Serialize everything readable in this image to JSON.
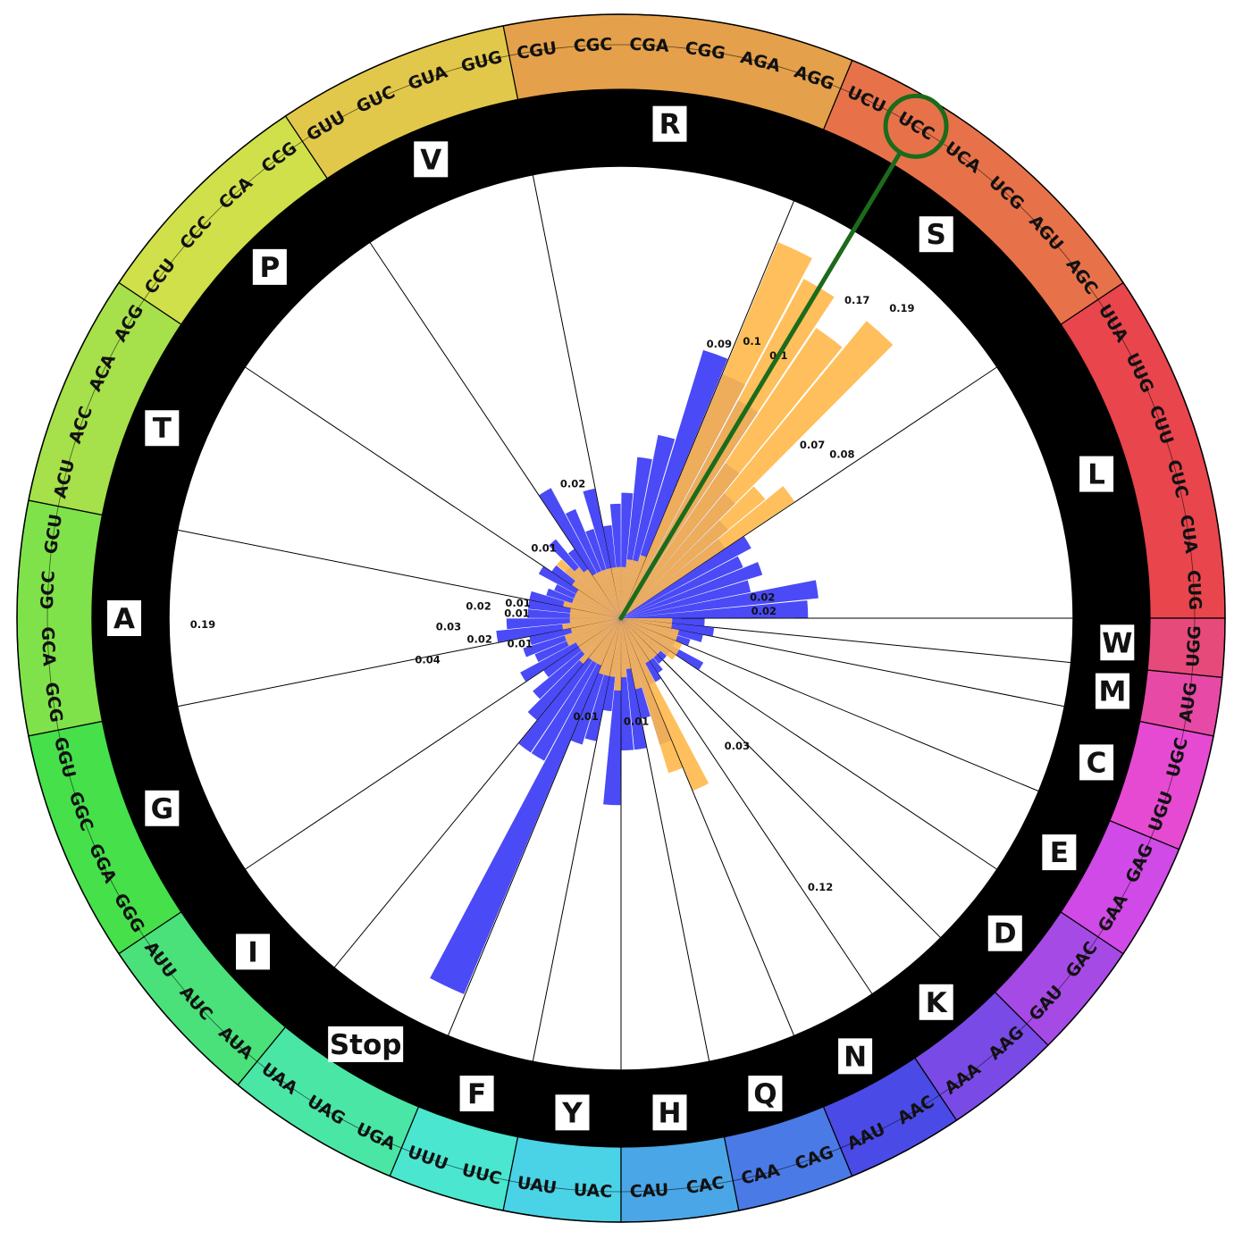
{
  "chart_data": {
    "type": "bar",
    "subtype": "polar",
    "colors": {
      "series_a": "#4a4af6",
      "series_b": "#ffb84a",
      "highlight": "#1b6b1b"
    },
    "amino_acids": [
      {
        "aa": "L",
        "codons": [
          "CUG",
          "CUA",
          "CUC",
          "CUU",
          "UUG",
          "UUA"
        ],
        "color": "#e8454d"
      },
      {
        "aa": "S",
        "codons": [
          "AGC",
          "AGU",
          "UCG",
          "UCA",
          "UCC",
          "UCU"
        ],
        "color": "#e7724a"
      },
      {
        "aa": "R",
        "codons": [
          "AGG",
          "AGA",
          "CGG",
          "CGA",
          "CGC",
          "CGU"
        ],
        "color": "#e4a04a"
      },
      {
        "aa": "V",
        "codons": [
          "GUG",
          "GUA",
          "GUC",
          "GUU"
        ],
        "color": "#e2c84a"
      },
      {
        "aa": "P",
        "codons": [
          "CCG",
          "CCA",
          "CCC",
          "CCU"
        ],
        "color": "#cfe04a"
      },
      {
        "aa": "T",
        "codons": [
          "ACG",
          "ACA",
          "ACC",
          "ACU"
        ],
        "color": "#a6e04a"
      },
      {
        "aa": "A",
        "codons": [
          "GCU",
          "GCC",
          "GCA",
          "GCG"
        ],
        "color": "#7fe24a"
      },
      {
        "aa": "G",
        "codons": [
          "GGU",
          "GGC",
          "GGA",
          "GGG"
        ],
        "color": "#45e04a"
      },
      {
        "aa": "I",
        "codons": [
          "AUU",
          "AUC",
          "AUA"
        ],
        "color": "#4ae07a"
      },
      {
        "aa": "Stop",
        "codons": [
          "UAA",
          "UAG",
          "UGA"
        ],
        "color": "#4ae6a6"
      },
      {
        "aa": "F",
        "codons": [
          "UUU",
          "UUC"
        ],
        "color": "#4ae6cf"
      },
      {
        "aa": "Y",
        "codons": [
          "UAU",
          "UAC"
        ],
        "color": "#4ad2e6"
      },
      {
        "aa": "H",
        "codons": [
          "CAU",
          "CAC"
        ],
        "color": "#4aa6e6"
      },
      {
        "aa": "Q",
        "codons": [
          "CAA",
          "CAG"
        ],
        "color": "#4a7ae6"
      },
      {
        "aa": "N",
        "codons": [
          "AAU",
          "AAC"
        ],
        "color": "#4a4ae6"
      },
      {
        "aa": "K",
        "codons": [
          "AAA",
          "AAG"
        ],
        "color": "#7a4ae6"
      },
      {
        "aa": "D",
        "codons": [
          "GAU",
          "GAC"
        ],
        "color": "#a64ae6"
      },
      {
        "aa": "E",
        "codons": [
          "GAA",
          "GAG"
        ],
        "color": "#cf4ae6"
      },
      {
        "aa": "C",
        "codons": [
          "UGU",
          "UGC"
        ],
        "color": "#e64ad2"
      },
      {
        "aa": "M",
        "codons": [
          "AUG"
        ],
        "color": "#e64aa6"
      },
      {
        "aa": "W",
        "codons": [
          "UGG"
        ],
        "color": "#e64a7a"
      }
    ],
    "series": [
      {
        "name": "",
        "color": "#4a4af6",
        "values": [
          0.04,
          0.045,
          0.02,
          0.025,
          0.02,
          0.025,
          0.018,
          0.022,
          0.03,
          0.04,
          0.07,
          0.08,
          0.09,
          0.04,
          0.03,
          0.018,
          0.015,
          0.01,
          0.02,
          0.01,
          0.016,
          0.025,
          0.008,
          0.012,
          0.006,
          0.008,
          0.01,
          0.006,
          0.007,
          0.01,
          0.01,
          0.01,
          0.015,
          0.018,
          0.01,
          0.012,
          0.01,
          0.015,
          0.01,
          0.015,
          0.02,
          0.03,
          0.03,
          0.19,
          0.02,
          0.018,
          0.01,
          0.04,
          0.02,
          0.02,
          0.012,
          0.02,
          0.006,
          0.006,
          0.005,
          0.004,
          0.004,
          0.004,
          0.01,
          0.004,
          0.006,
          0.008,
          0.01,
          0.008,
          0.01,
          0.01,
          0.12,
          0.03,
          0.012,
          0.02,
          0.008,
          0.01,
          0.01,
          0.007,
          0.006,
          0.008
        ]
      },
      {
        "name": "",
        "color": "#ffb84a",
        "values": [
          0,
          0,
          0,
          0,
          0,
          0,
          0.05,
          0.04,
          0.17,
          0.14,
          0.17,
          0.19,
          0.005,
          0.004,
          0.004,
          0.003,
          0.003,
          0.003,
          0.003,
          0.003,
          0.003,
          0.003,
          0.004,
          0.005,
          0.008,
          0.004,
          0.003,
          0.003,
          0.003,
          0.004,
          0.003,
          0.003,
          0.003,
          0.004,
          0.003,
          0.004,
          0.004,
          0.003,
          0.003,
          0.003,
          0.004,
          0.003,
          0.003,
          0.003,
          0.004,
          0.004,
          0.004,
          0.006,
          0.004,
          0.003,
          0.006,
          0.03,
          0.04,
          0.003,
          0.003,
          0.003,
          0.003,
          0.005,
          0.005,
          0.005,
          0.004,
          0.004,
          0.003,
          0.003,
          0.003,
          0.003,
          0.003,
          0.003,
          0.003,
          0.003,
          0.003,
          0.003,
          0.003,
          0.003,
          0.003,
          0.003
        ]
      }
    ],
    "value_labels": {
      "series_a": [
        {
          "codon": "AGC",
          "text": "0.08"
        },
        {
          "codon": "AGU",
          "text": "0.07"
        },
        {
          "codon": "AGG",
          "text": "0.09"
        },
        {
          "codon": "CUG",
          "text": "0.02"
        },
        {
          "codon": "CUA",
          "text": "0.02"
        },
        {
          "codon": "GUA",
          "text": "0.02"
        },
        {
          "codon": "CCC",
          "text": "0.01"
        },
        {
          "codon": "GCU",
          "text": "0.01"
        },
        {
          "codon": "GCC",
          "text": "0.01"
        },
        {
          "codon": "GCC",
          "text": "0.02"
        },
        {
          "codon": "GCA",
          "text": "0.03"
        },
        {
          "codon": "GCA",
          "text": "0.19"
        },
        {
          "codon": "GCG",
          "text": "0.02"
        },
        {
          "codon": "GGU",
          "text": "0.01"
        },
        {
          "codon": "GGU",
          "text": "0.04"
        },
        {
          "codon": "UUU",
          "text": "0.01"
        },
        {
          "codon": "CAC",
          "text": "0.01"
        },
        {
          "codon": "AAA",
          "text": "0.12"
        },
        {
          "codon": "AAG",
          "text": "0.03"
        }
      ],
      "series_b": [
        {
          "codon": "UCU",
          "text": "0.1"
        },
        {
          "codon": "UCC",
          "text": "0.1"
        },
        {
          "codon": "UCA",
          "text": "0.17"
        },
        {
          "codon": "UCG",
          "text": "0.19"
        }
      ]
    },
    "highlighted_codon": "UCC",
    "radial_max": 0.2
  }
}
